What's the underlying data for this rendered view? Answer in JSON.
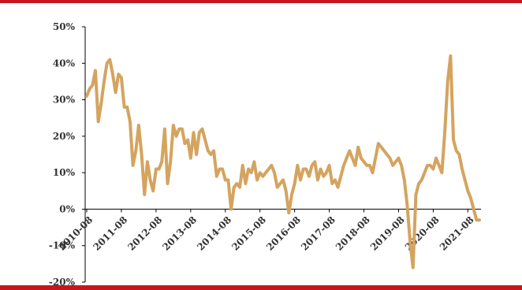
{
  "colors": {
    "frame_red": "#c8161d",
    "series_line": "#d4a45f",
    "axis": "#000000",
    "text": "#333333"
  },
  "chart_data": {
    "type": "line",
    "title": "",
    "xlabel": "",
    "ylabel": "",
    "ylim": [
      -20,
      50
    ],
    "yticks": [
      "50%",
      "40%",
      "30%",
      "20%",
      "10%",
      "0%",
      "-10%",
      "-20%"
    ],
    "ytick_values": [
      50,
      40,
      30,
      20,
      10,
      0,
      -10,
      -20
    ],
    "xtick_labels": [
      "2010-08",
      "2011-08",
      "2012-08",
      "2013-08",
      "2014-08",
      "2015-08",
      "2016-08",
      "2017-08",
      "2018-08",
      "2019-08",
      "2020-08",
      "2021-08"
    ],
    "x_start": "2010-08",
    "x_end": "2021-11",
    "grid": false,
    "legend": "none",
    "series": [
      {
        "values": [
          31,
          33,
          34,
          38,
          24,
          29,
          35,
          40,
          41,
          37,
          32,
          37,
          36,
          28,
          28,
          24,
          12,
          16,
          23,
          15,
          4,
          13,
          8,
          5,
          11,
          11,
          13,
          22,
          7,
          13,
          23,
          20,
          22,
          22,
          18,
          19,
          14,
          21,
          15,
          21,
          22,
          19,
          16,
          15,
          16,
          9,
          11,
          11,
          8,
          8,
          0,
          6,
          7,
          6,
          12,
          7,
          11,
          10,
          13,
          8,
          10,
          9,
          10,
          11,
          12,
          10,
          6,
          7,
          8,
          5,
          -1,
          4,
          7,
          12,
          8,
          11,
          11,
          9,
          12,
          13,
          8,
          11,
          9,
          10,
          12,
          7,
          8,
          6,
          9,
          12,
          14,
          16,
          14,
          12,
          17,
          14,
          13,
          12,
          12,
          10,
          14,
          18,
          17,
          16,
          15,
          14,
          12,
          13,
          14,
          12,
          8,
          1,
          -9,
          -16,
          4,
          7,
          8,
          10,
          12,
          12,
          11,
          14,
          12,
          10,
          21,
          35,
          42,
          19,
          16,
          15,
          11,
          8,
          5,
          3,
          0,
          -3,
          -3
        ]
      }
    ]
  }
}
